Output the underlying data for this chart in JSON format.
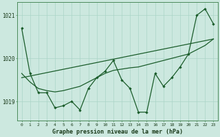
{
  "bg_color": "#cce8df",
  "grid_color": "#aad4c8",
  "line_color": "#1a5c2a",
  "title": "Graphe pression niveau de la mer (hPa)",
  "x_ticks": [
    0,
    1,
    2,
    3,
    4,
    5,
    6,
    7,
    8,
    9,
    10,
    11,
    12,
    13,
    14,
    15,
    16,
    17,
    18,
    19,
    20,
    21,
    22,
    23
  ],
  "ylim": [
    1018.55,
    1021.3
  ],
  "yticks": [
    1019,
    1020,
    1021
  ],
  "ytick_labels": [
    "1019",
    "1020",
    "1021"
  ],
  "main_data": [
    1020.7,
    1019.65,
    1019.2,
    1019.2,
    1018.85,
    1018.9,
    1019.0,
    1018.8,
    1019.3,
    1019.55,
    1019.7,
    1019.95,
    1019.5,
    1019.3,
    1018.75,
    1018.75,
    1019.65,
    1019.35,
    1019.55,
    1019.8,
    1020.1,
    1021.0,
    1021.15,
    1020.8
  ],
  "smooth_line1": [
    [
      0,
      1,
      2,
      3,
      4,
      5,
      6,
      7,
      8,
      9,
      10,
      11,
      12,
      13,
      14,
      15,
      16,
      17,
      18,
      19,
      20,
      21,
      22,
      23
    ],
    [
      1019.65,
      1019.45,
      1019.3,
      1019.25,
      1019.22,
      1019.25,
      1019.3,
      1019.35,
      1019.45,
      1019.55,
      1019.65,
      1019.72,
      1019.75,
      1019.78,
      1019.8,
      1019.85,
      1019.9,
      1019.95,
      1020.0,
      1020.05,
      1020.1,
      1020.2,
      1020.3,
      1020.45
    ]
  ],
  "trend_line": [
    [
      0,
      23
    ],
    [
      1019.55,
      1020.45
    ]
  ],
  "xlim": [
    -0.5,
    23.5
  ]
}
